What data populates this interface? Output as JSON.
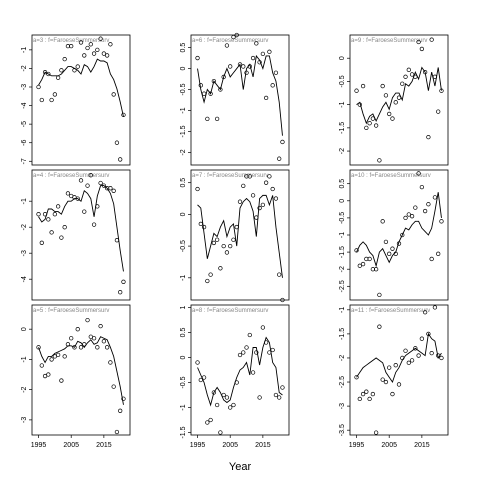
{
  "figure": {
    "xlabel": "Year"
  },
  "chart_data": [
    {
      "type": "line",
      "title": "a=3 : f=FaroeseSummersurv",
      "xlim": [
        1993,
        2023
      ],
      "ylim": [
        -7.2,
        -0.2
      ],
      "yticks": [
        -1,
        -2,
        -3,
        -4,
        -5,
        -6,
        -7
      ],
      "line": {
        "x": [
          1995,
          1996,
          1997,
          1998,
          1999,
          2000,
          2001,
          2002,
          2003,
          2004,
          2005,
          2006,
          2007,
          2008,
          2009,
          2010,
          2011,
          2012,
          2013,
          2014,
          2015,
          2016,
          2017,
          2018,
          2019,
          2020,
          2021
        ],
        "y": [
          -2.9,
          -2.6,
          -2.2,
          -2.3,
          -2.4,
          -2.4,
          -2.4,
          -2.3,
          -2.1,
          -1.9,
          -1.9,
          -2.0,
          -2.1,
          -2.3,
          -1.8,
          -1.9,
          -2.2,
          -1.9,
          -1.5,
          -1.6,
          -1.6,
          -1.7,
          -2.3,
          -2.6,
          -3.1,
          -3.8,
          -4.6
        ]
      },
      "points": {
        "x": [
          1995,
          1996,
          1997,
          1998,
          1999,
          2000,
          2001,
          2002,
          2003,
          2004,
          2005,
          2006,
          2007,
          2008,
          2009,
          2010,
          2011,
          2012,
          2013,
          2014,
          2015,
          2016,
          2017,
          2018,
          2019,
          2020,
          2021
        ],
        "y": [
          -3.0,
          -3.7,
          -2.2,
          -2.3,
          -3.7,
          -3.4,
          -2.5,
          -2.1,
          -1.5,
          -0.8,
          -0.8,
          -2.1,
          -1.9,
          -0.6,
          -1.3,
          -0.9,
          -0.7,
          -1.2,
          -1.0,
          -0.4,
          -1.2,
          -1.3,
          -0.7,
          -3.4,
          -6.0,
          -6.9,
          -4.5
        ]
      }
    },
    {
      "type": "line",
      "title": "a=6 : f=FaroeseSummersurv",
      "xlim": [
        1993,
        2023
      ],
      "ylim": [
        -2.3,
        0.8
      ],
      "yticks": [
        0.5,
        0.0,
        -0.5,
        -1.0,
        -1.5,
        -2.0
      ],
      "line": {
        "x": [
          1995,
          1996,
          1997,
          1998,
          1999,
          2000,
          2001,
          2002,
          2003,
          2004,
          2005,
          2006,
          2007,
          2008,
          2009,
          2010,
          2011,
          2012,
          2013,
          2014,
          2015,
          2016,
          2017,
          2018,
          2019,
          2020,
          2021
        ],
        "y": [
          0.0,
          -0.5,
          -0.8,
          -0.5,
          -0.6,
          -0.3,
          -0.4,
          -0.5,
          -0.2,
          0.0,
          -0.2,
          -0.1,
          0.0,
          0.1,
          -0.5,
          0.0,
          0.1,
          -0.2,
          0.3,
          0.2,
          0.0,
          0.3,
          0.3,
          -0.1,
          -0.3,
          -0.8,
          -1.6
        ]
      },
      "points": {
        "x": [
          1995,
          1996,
          1997,
          1998,
          1999,
          2000,
          2001,
          2002,
          2003,
          2004,
          2005,
          2006,
          2007,
          2008,
          2009,
          2010,
          2011,
          2012,
          2013,
          2014,
          2015,
          2016,
          2017,
          2018,
          2019,
          2020,
          2021
        ],
        "y": [
          0.25,
          -0.4,
          -0.6,
          -1.2,
          -0.6,
          -0.3,
          -1.2,
          -0.5,
          -0.2,
          0.55,
          0.05,
          0.75,
          0.8,
          0.1,
          0.05,
          -0.1,
          0.05,
          0.25,
          0.6,
          0.15,
          0.35,
          -0.7,
          0.4,
          -0.4,
          -0.1,
          -2.15,
          -1.75
        ]
      }
    },
    {
      "type": "line",
      "title": "a=9 : f=FaroeseSummersurv",
      "xlim": [
        1993,
        2023
      ],
      "ylim": [
        -2.3,
        0.5
      ],
      "yticks": [
        0.0,
        -0.5,
        -1.0,
        -1.5,
        -2.0
      ],
      "line": {
        "x": [
          1995,
          1996,
          1997,
          1998,
          1999,
          2000,
          2001,
          2002,
          2003,
          2004,
          2005,
          2006,
          2007,
          2008,
          2009,
          2010,
          2011,
          2012,
          2013,
          2014,
          2015,
          2016,
          2017,
          2018,
          2019,
          2020,
          2021
        ],
        "y": [
          -1.0,
          -0.95,
          -1.2,
          -1.4,
          -1.25,
          -1.2,
          -1.35,
          -1.2,
          -1.05,
          -0.95,
          -1.1,
          -0.85,
          -0.75,
          -0.75,
          -0.9,
          -0.55,
          -0.6,
          -0.5,
          -0.3,
          -0.45,
          -0.2,
          -0.3,
          -0.7,
          -0.3,
          -0.6,
          -0.2,
          -0.7
        ]
      },
      "points": {
        "x": [
          1995,
          1996,
          1997,
          1998,
          1999,
          2000,
          2001,
          2002,
          2003,
          2004,
          2005,
          2006,
          2007,
          2008,
          2009,
          2010,
          2011,
          2012,
          2013,
          2014,
          2015,
          2016,
          2017,
          2018,
          2019,
          2020,
          2021
        ],
        "y": [
          -0.7,
          -1.0,
          -0.6,
          -1.5,
          -1.4,
          -1.3,
          -1.45,
          -2.2,
          -0.6,
          -0.8,
          -1.2,
          -1.3,
          -0.95,
          -0.85,
          -0.55,
          -0.4,
          -0.25,
          -0.35,
          -0.4,
          0.35,
          0.2,
          -0.3,
          -1.7,
          0.4,
          -0.4,
          -1.15,
          -0.7
        ]
      }
    },
    {
      "type": "line",
      "title": "a=4 : f=FaroeseSummersurv",
      "xlim": [
        1993,
        2023
      ],
      "ylim": [
        -4.8,
        0.2
      ],
      "yticks": [
        -1,
        -2,
        -3,
        -4
      ],
      "line": {
        "x": [
          1995,
          1996,
          1997,
          1998,
          1999,
          2000,
          2001,
          2002,
          2003,
          2004,
          2005,
          2006,
          2007,
          2008,
          2009,
          2010,
          2011,
          2012,
          2013,
          2014,
          2015,
          2016,
          2017,
          2018,
          2019,
          2020,
          2021
        ],
        "y": [
          -1.6,
          -1.8,
          -1.7,
          -1.3,
          -1.3,
          -1.4,
          -1.4,
          -1.5,
          -1.2,
          -1.0,
          -1.0,
          -0.9,
          -0.9,
          -1.0,
          -0.6,
          -0.7,
          -0.9,
          -1.6,
          -0.8,
          -0.4,
          -0.4,
          -0.5,
          -0.7,
          -1.1,
          -2.0,
          -2.9,
          -3.7
        ]
      },
      "points": {
        "x": [
          1995,
          1996,
          1997,
          1998,
          1999,
          2000,
          2001,
          2002,
          2003,
          2004,
          2005,
          2006,
          2007,
          2008,
          2009,
          2010,
          2011,
          2012,
          2013,
          2014,
          2015,
          2016,
          2017,
          2018,
          2019,
          2020,
          2021
        ],
        "y": [
          -1.5,
          -2.6,
          -1.5,
          -1.7,
          -2.2,
          -1.5,
          -1.2,
          -2.4,
          -2.0,
          -0.7,
          -0.8,
          -0.85,
          -0.9,
          -0.2,
          -1.4,
          -0.4,
          0.0,
          -1.9,
          -1.2,
          -0.3,
          -0.4,
          -0.5,
          -0.5,
          -0.6,
          -2.5,
          -4.5,
          -4.1
        ]
      }
    },
    {
      "type": "line",
      "title": "a=7 : f=FaroeseSummersurv",
      "xlim": [
        1993,
        2023
      ],
      "ylim": [
        -1.35,
        0.7
      ],
      "yticks": [
        0.5,
        0.0,
        -0.5,
        -1.0
      ],
      "line": {
        "x": [
          1995,
          1996,
          1997,
          1998,
          1999,
          2000,
          2001,
          2002,
          2003,
          2004,
          2005,
          2006,
          2007,
          2008,
          2009,
          2010,
          2011,
          2012,
          2013,
          2014,
          2015,
          2016,
          2017,
          2018,
          2019,
          2020,
          2021
        ],
        "y": [
          0.15,
          0.1,
          -0.3,
          -0.7,
          -0.5,
          -0.3,
          -0.35,
          -0.2,
          -0.1,
          -0.35,
          -0.2,
          -0.15,
          -0.5,
          0.1,
          0.2,
          0.25,
          0.2,
          0.05,
          -0.35,
          0.25,
          0.3,
          0.3,
          0.15,
          0.3,
          -0.2,
          -0.6,
          -1.0
        ]
      },
      "points": {
        "x": [
          1995,
          1996,
          1997,
          1998,
          1999,
          2000,
          2001,
          2002,
          2003,
          2004,
          2005,
          2006,
          2007,
          2008,
          2009,
          2010,
          2011,
          2012,
          2013,
          2014,
          2015,
          2016,
          2017,
          2018,
          2019,
          2020,
          2021
        ],
        "y": [
          0.4,
          -0.15,
          -0.2,
          -1.05,
          -0.95,
          -0.45,
          -0.4,
          -0.85,
          -0.5,
          -0.6,
          -0.5,
          -0.4,
          -0.2,
          0.2,
          0.45,
          0.6,
          0.6,
          0.3,
          -0.05,
          0.1,
          0.15,
          0.5,
          0.6,
          0.4,
          0.25,
          -0.95,
          -1.35
        ]
      }
    },
    {
      "type": "line",
      "title": "a=10 : f=FaroeseSummersurv",
      "xlim": [
        1993,
        2023
      ],
      "ylim": [
        -2.9,
        0.9
      ],
      "yticks": [
        0.5,
        0.0,
        -0.5,
        -1.0,
        -1.5,
        -2.0,
        -2.5
      ],
      "line": {
        "x": [
          1995,
          1996,
          1997,
          1998,
          1999,
          2000,
          2001,
          2002,
          2003,
          2004,
          2005,
          2006,
          2007,
          2008,
          2009,
          2010,
          2011,
          2012,
          2013,
          2014,
          2015,
          2016,
          2017,
          2018,
          2019,
          2020,
          2021
        ],
        "y": [
          -1.5,
          -1.3,
          -1.2,
          -1.3,
          -1.5,
          -1.6,
          -1.9,
          -1.5,
          -1.4,
          -1.6,
          -1.8,
          -1.6,
          -1.5,
          -1.2,
          -1.0,
          -0.8,
          -0.85,
          -0.7,
          -0.6,
          -0.6,
          -0.8,
          -0.9,
          -1.0,
          -0.8,
          -0.3,
          0.25,
          -0.5
        ]
      },
      "points": {
        "x": [
          1995,
          1996,
          1997,
          1998,
          1999,
          2000,
          2001,
          2002,
          2003,
          2004,
          2005,
          2006,
          2007,
          2008,
          2009,
          2010,
          2011,
          2012,
          2013,
          2014,
          2015,
          2016,
          2017,
          2018,
          2019,
          2020,
          2021
        ],
        "y": [
          -1.45,
          -1.9,
          -1.85,
          -1.7,
          -1.7,
          -2.0,
          -2.0,
          -2.75,
          -0.6,
          -1.2,
          -1.55,
          -1.4,
          -1.55,
          -1.25,
          -1.0,
          -0.5,
          -0.4,
          -0.45,
          -0.2,
          0.8,
          0.4,
          -0.3,
          -0.1,
          -1.7,
          0.1,
          -1.55,
          -0.6
        ]
      }
    },
    {
      "type": "line",
      "title": "a=5 : f=FaroeseSummersurv",
      "xlim": [
        1993,
        2023
      ],
      "ylim": [
        -3.5,
        0.8
      ],
      "yticks": [
        0,
        -1,
        -2,
        -3
      ],
      "line": {
        "x": [
          1995,
          1996,
          1997,
          1998,
          1999,
          2000,
          2001,
          2002,
          2003,
          2004,
          2005,
          2006,
          2007,
          2008,
          2009,
          2010,
          2011,
          2012,
          2013,
          2014,
          2015,
          2016,
          2017,
          2018,
          2019,
          2020,
          2021
        ],
        "y": [
          -0.6,
          -0.9,
          -1.1,
          -0.9,
          -0.9,
          -0.8,
          -0.75,
          -0.7,
          -0.65,
          -0.55,
          -0.55,
          -0.6,
          -0.4,
          -0.45,
          -0.6,
          -0.45,
          -0.35,
          -0.5,
          -0.45,
          -0.25,
          -0.3,
          -0.35,
          -0.6,
          -0.9,
          -1.4,
          -1.9,
          -2.5
        ]
      },
      "points": {
        "x": [
          1995,
          1996,
          1997,
          1998,
          1999,
          2000,
          2001,
          2002,
          2003,
          2004,
          2005,
          2006,
          2007,
          2008,
          2009,
          2010,
          2011,
          2012,
          2013,
          2014,
          2015,
          2016,
          2017,
          2018,
          2019,
          2020,
          2021
        ],
        "y": [
          -0.6,
          -1.2,
          -1.55,
          -1.5,
          -1.0,
          -0.9,
          -0.85,
          -1.7,
          -0.9,
          -0.5,
          -0.3,
          -0.6,
          0.0,
          -0.6,
          -0.5,
          0.3,
          -0.25,
          -0.3,
          -0.6,
          0.1,
          -0.4,
          -0.6,
          -1.1,
          -1.9,
          -3.4,
          -2.7,
          -2.3
        ]
      }
    },
    {
      "type": "line",
      "title": "a=8 : f=FaroeseSummersurv",
      "xlim": [
        1993,
        2023
      ],
      "ylim": [
        -1.55,
        1.05
      ],
      "yticks": [
        1.0,
        0.5,
        0.0,
        -0.5,
        -1.0,
        -1.5
      ],
      "line": {
        "x": [
          1995,
          1996,
          1997,
          1998,
          1999,
          2000,
          2001,
          2002,
          2003,
          2004,
          2005,
          2006,
          2007,
          2008,
          2009,
          2010,
          2011,
          2012,
          2013,
          2014,
          2015,
          2016,
          2017,
          2018,
          2019,
          2020,
          2021
        ],
        "y": [
          -0.2,
          -0.35,
          -0.5,
          -0.75,
          -0.95,
          -0.7,
          -0.6,
          -0.7,
          -0.85,
          -0.9,
          -0.85,
          -0.6,
          -0.4,
          -0.25,
          -0.2,
          -0.1,
          -0.35,
          0.2,
          0.2,
          -0.15,
          0.2,
          0.4,
          0.3,
          -0.1,
          -0.2,
          -0.7,
          -0.75
        ]
      },
      "points": {
        "x": [
          1995,
          1996,
          1997,
          1998,
          1999,
          2000,
          2001,
          2002,
          2003,
          2004,
          2005,
          2006,
          2007,
          2008,
          2009,
          2010,
          2011,
          2012,
          2013,
          2014,
          2015,
          2016,
          2017,
          2018,
          2019,
          2020,
          2021
        ],
        "y": [
          -0.1,
          -0.45,
          -0.4,
          -1.3,
          -1.25,
          -0.7,
          -0.95,
          -1.5,
          -0.75,
          -0.8,
          -1.0,
          -0.95,
          -0.5,
          0.05,
          0.1,
          0.2,
          0.45,
          -0.3,
          0.1,
          -0.8,
          0.6,
          0.3,
          0.1,
          0.15,
          -0.75,
          -0.8,
          -0.6
        ]
      }
    },
    {
      "type": "line",
      "title": "a=11 : f=FaroeseSummersurv",
      "xlim": [
        1993,
        2023
      ],
      "ylim": [
        -3.6,
        -0.9
      ],
      "yticks": [
        -1.0,
        -1.5,
        -2.0,
        -2.5,
        -3.0,
        -3.5
      ],
      "line": {
        "x": [
          1995,
          1996,
          1997,
          1998,
          1999,
          2000,
          2001,
          2002,
          2003,
          2004,
          2005,
          2006,
          2007,
          2008,
          2009,
          2010,
          2011,
          2012,
          2013,
          2014,
          2015,
          2016,
          2017,
          2018,
          2019,
          2020,
          2021
        ],
        "y": [
          -2.4,
          -2.3,
          -2.2,
          -2.15,
          -2.1,
          -2.05,
          -2.0,
          -2.05,
          -2.1,
          -2.3,
          -2.4,
          -2.5,
          -2.3,
          -2.2,
          -2.05,
          -1.95,
          -1.9,
          -1.85,
          -1.8,
          -1.85,
          -1.9,
          -1.95,
          -1.5,
          -1.6,
          -1.65,
          -2.0,
          -1.9
        ]
      },
      "points": {
        "x": [
          1995,
          1996,
          1997,
          1998,
          1999,
          2000,
          2001,
          2002,
          2003,
          2004,
          2005,
          2006,
          2007,
          2008,
          2009,
          2010,
          2011,
          2012,
          2013,
          2014,
          2015,
          2016,
          2017,
          2018,
          2019,
          2020,
          2021
        ],
        "y": [
          -2.4,
          -2.85,
          -2.75,
          -2.7,
          -2.85,
          -2.75,
          -3.55,
          -1.35,
          -2.45,
          -2.5,
          -2.2,
          -2.75,
          -2.15,
          -2.55,
          -2.0,
          -1.85,
          -2.1,
          -2.05,
          -1.8,
          -1.95,
          -1.6,
          -1.05,
          -1.5,
          -1.9,
          -0.95,
          -1.95,
          -2.0
        ]
      }
    }
  ]
}
